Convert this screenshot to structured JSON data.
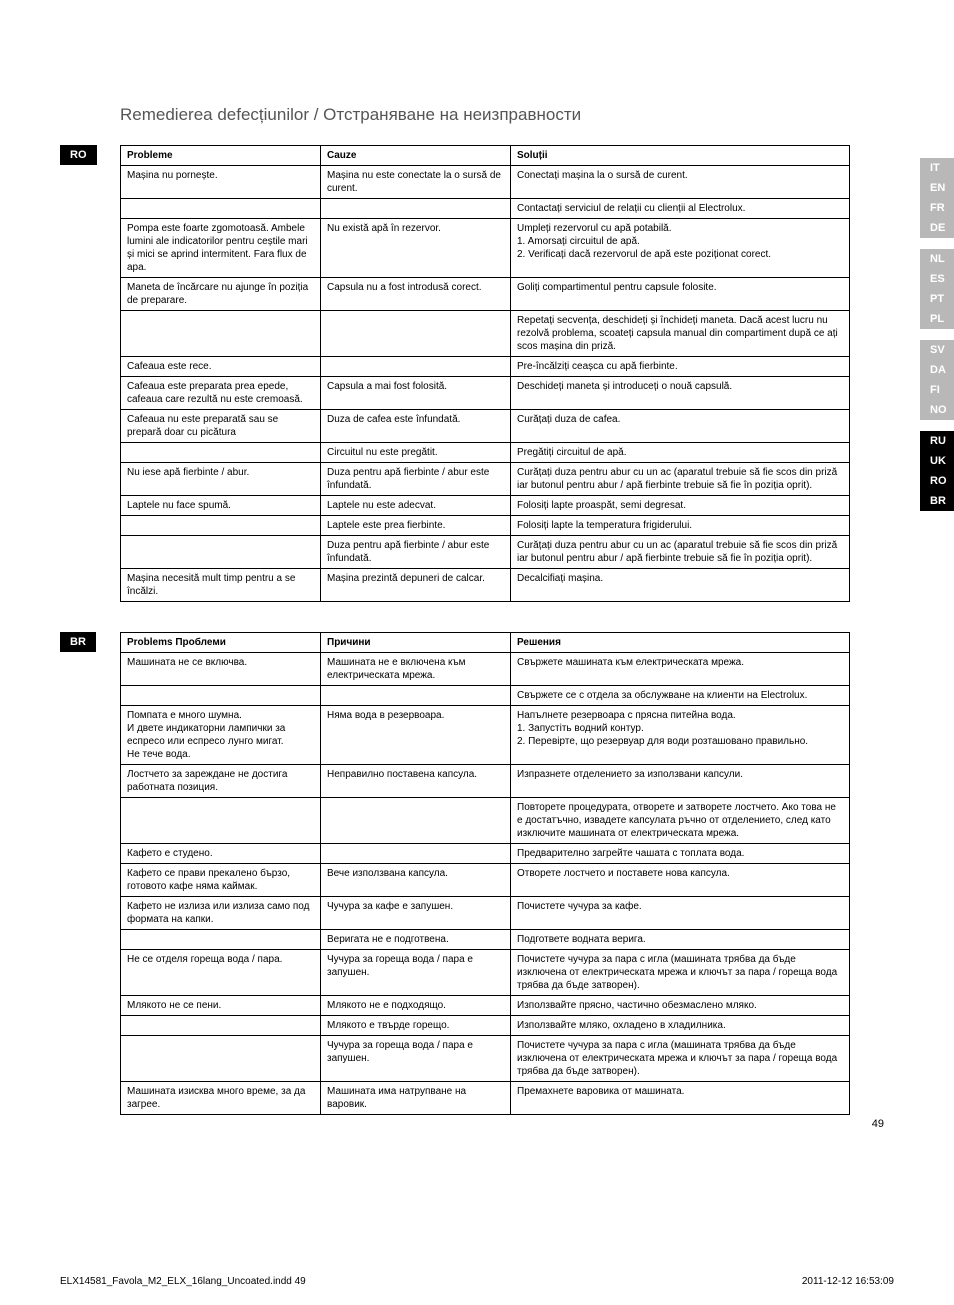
{
  "title": {
    "ro": "Remedierea defecțiunilor",
    "br": "Отстраняване на неизправности",
    "separator": " / "
  },
  "lang_nav": {
    "groups": [
      [
        "IT",
        "EN",
        "FR",
        "DE"
      ],
      [
        "NL",
        "ES",
        "PT",
        "PL"
      ],
      [
        "SV",
        "DA",
        "FI",
        "NO"
      ],
      [
        "RU",
        "UK",
        "RO",
        "BR"
      ]
    ],
    "active": [
      "RU",
      "UK",
      "RO",
      "BR"
    ]
  },
  "sections": [
    {
      "badge": "RO",
      "headers": [
        "Probleme",
        "Cauze",
        "Soluții"
      ],
      "rows": [
        [
          "Mașina nu pornește.",
          "Mașina nu este conectate la o sursă de curent.",
          "Conectați mașina la o sursă de curent."
        ],
        [
          "",
          "",
          "Contactați serviciul de relații cu clienții al Electrolux."
        ],
        [
          "Pompa este foarte zgomotoasă. Ambele lumini ale indicatorilor pentru ceștile mari și mici se aprind intermitent. Fara flux de apa.",
          "Nu există apă în rezervor.",
          "Umpleți rezervorul cu apă potabilă.\n1. Amorsați circuitul de apă.\n2. Verificați dacă rezervorul de apă este poziționat corect."
        ],
        [
          "Maneta de încărcare nu ajunge în poziția de preparare.",
          "Capsula nu a fost introdusă corect.",
          "Goliți compartimentul pentru capsule folosite."
        ],
        [
          "",
          "",
          "Repetați secvența, deschideți și închideți maneta. Dacă acest lucru nu rezolvă problema, scoateți capsula manual din compartiment după ce ați scos mașina din priză."
        ],
        [
          "Cafeaua este rece.",
          "",
          "Pre-încălziți ceașca cu apă fierbinte."
        ],
        [
          "Cafeaua este preparata prea epede, cafeaua care rezultă nu este cremoasă.",
          "Capsula a mai fost folosită.",
          "Deschideți maneta și introduceți o nouă capsulă."
        ],
        [
          "Cafeaua nu este preparată sau se prepară doar cu picătura",
          "Duza de cafea este înfundată.",
          "Curățați duza de cafea."
        ],
        [
          "",
          "Circuitul nu este pregătit.",
          "Pregătiți circuitul de apă."
        ],
        [
          "Nu iese apă fierbinte / abur.",
          "Duza pentru apă fierbinte / abur este înfundată.",
          "Curățați duza pentru abur cu un ac (aparatul trebuie să fie scos din priză iar butonul pentru abur / apă fierbinte trebuie să fie în poziția oprit)."
        ],
        [
          "Laptele nu face spumă.",
          "Laptele nu este adecvat.",
          "Folosiți lapte proaspăt, semi degresat."
        ],
        [
          "",
          "Laptele este prea fierbinte.",
          "Folosiți lapte la temperatura frigiderului."
        ],
        [
          "",
          "Duza pentru apă fierbinte / abur este înfundată.",
          "Curățați duza pentru abur cu un ac (aparatul trebuie să fie scos din priză iar butonul pentru abur / apă fierbinte trebuie să fie în poziția oprit)."
        ],
        [
          "Mașina necesită mult timp pentru a se încălzi.",
          "Mașina prezintă depuneri de calcar.",
          "Decalcifiați mașina."
        ]
      ]
    },
    {
      "badge": "BR",
      "headers": [
        "Problems Проблеми",
        "Причини",
        "Решения"
      ],
      "rows": [
        [
          "Машината не се включва.",
          "Машината не е включена към електрическата мрежа.",
          "Свържете машината към електрическата мрежа."
        ],
        [
          "",
          "",
          "Свържете се с отдела за обслужване на клиенти на Electrolux."
        ],
        [
          "Помпата е много шумна.\nИ двете индикаторни лампички за еспресо или еспресо лунго мигат.\nНе тече вода.",
          "Няма вода в резервоара.",
          "Напълнете резервоара с прясна питейна вода.\n1. Запустіть водний контур.\n2. Перевірте, що резервуар для води розташовано правильно."
        ],
        [
          "Лостчето за зареждане не достига работната позиция.",
          "Неправилно поставена капсула.",
          "Изпразнете отделението за използвани капсули."
        ],
        [
          "",
          "",
          "Повторете процедурата, отворете и затворете лостчето. Ако това не е достатъчно, извадете капсулата ръчно от отделението, след като изключите машината от електрическата мрежа."
        ],
        [
          "Кафето е студено.",
          "",
          "Предварително загрейте чашата с топлата вода."
        ],
        [
          "Кафето се прави прекалено бързо, готовото кафе няма каймак.",
          "Вече използвана капсула.",
          "Отворете лостчето и поставете нова капсула."
        ],
        [
          "Кафето не излиза или излиза само под формата на капки.",
          "Чучура за кафе е запушен.",
          "Почистете чучура за кафе."
        ],
        [
          "",
          "Веригата не е подготвена.",
          "Подгответе водната верига."
        ],
        [
          "Не се отделя гореща вода / пара.",
          "Чучура за гореща вода / пара е запушен.",
          "Почистете чучура за пара с игла (машината трябва да бъде изключена от електрическата мрежа и ключът за пара / гореща вода трябва да бъде затворен)."
        ],
        [
          "Млякото не се пени.",
          "Млякото не е подходящо.",
          "Използвайте прясно, частично обезмаслено мляко."
        ],
        [
          "",
          "Млякото е твърде горещо.",
          "Използвайте мляко, охладено в хладилника."
        ],
        [
          "",
          "Чучура за гореща вода / пара е запушен.",
          "Почистете чучура за пара с игла (машината трябва да бъде изключена от електрическата мрежа и ключът за пара / гореща вода трябва да бъде затворен)."
        ],
        [
          "Машината изисква много време, за да загрее.",
          "Машината има натрупване на варовик.",
          "Премахнете варовика от машината."
        ]
      ]
    }
  ],
  "page_number": "49",
  "footer": {
    "file": "ELX14581_Favola_M2_ELX_16lang_Uncoated.indd   49",
    "timestamp": "2011-12-12   16:53:09"
  },
  "colors": {
    "badge_bg": "#000000",
    "badge_fg": "#ffffff",
    "nav_inactive": "#b8b8b8",
    "border": "#000000",
    "title": "#555555"
  }
}
